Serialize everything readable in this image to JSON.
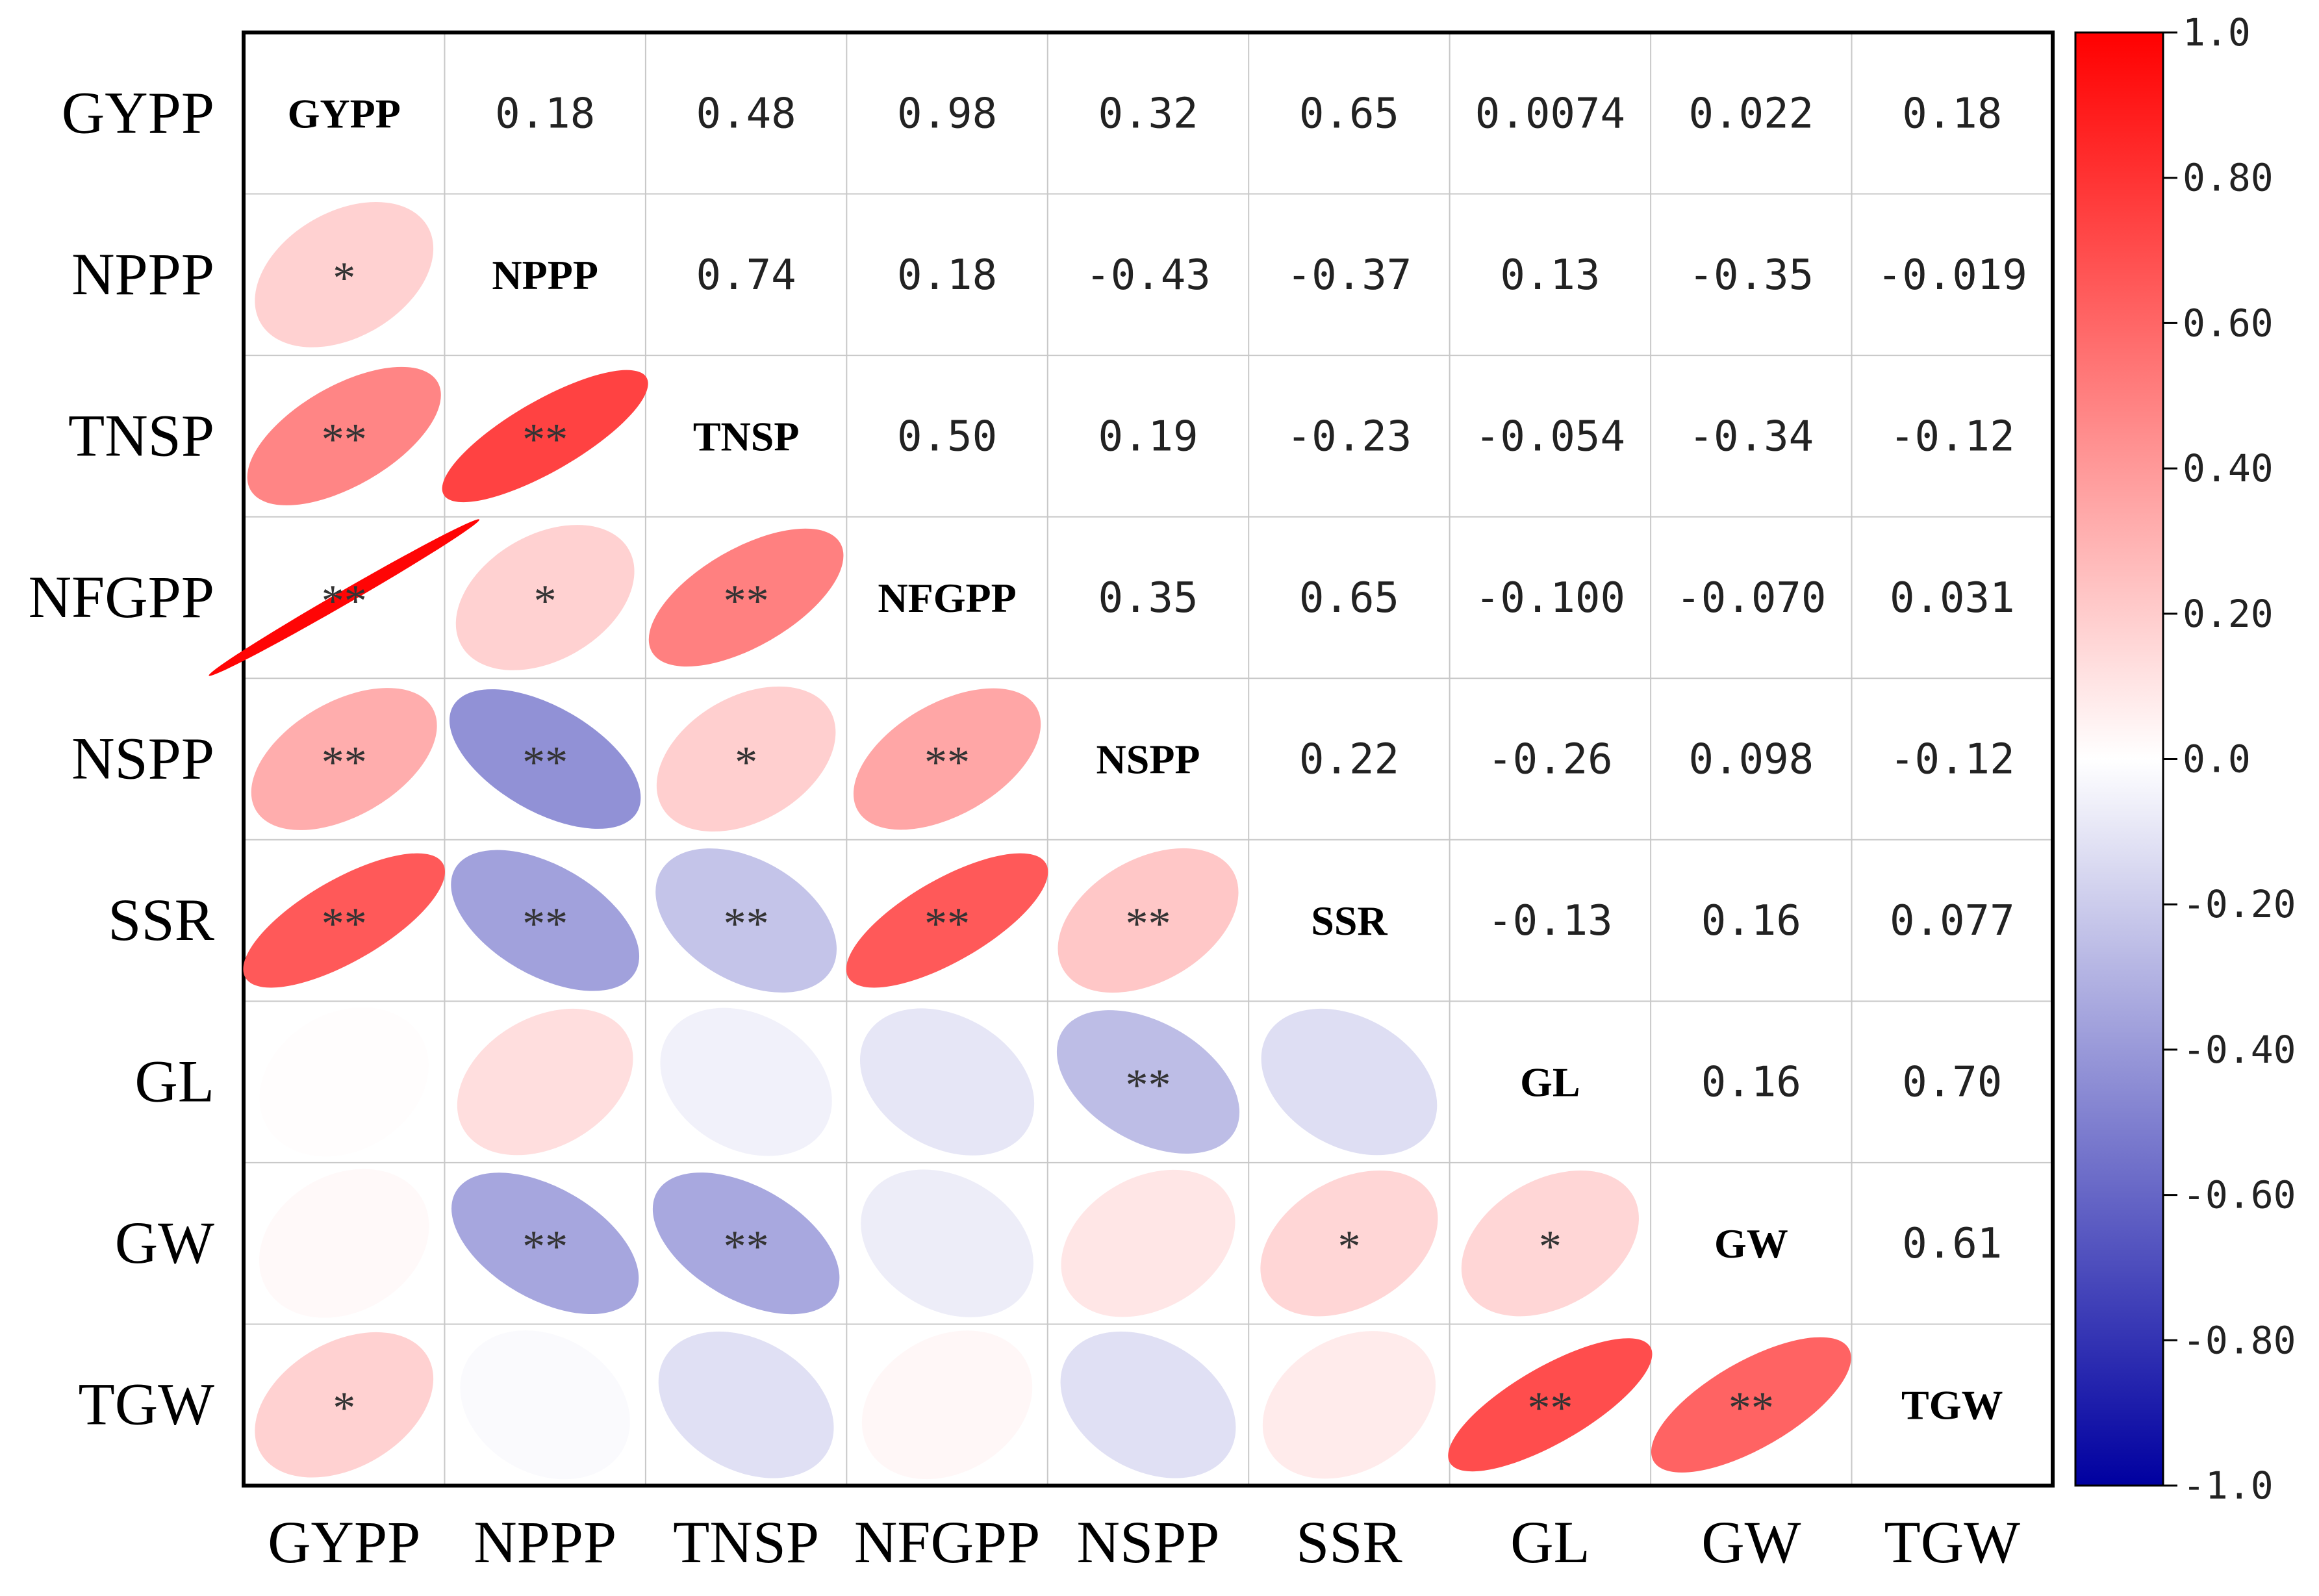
{
  "chart_data": {
    "type": "heatmap",
    "subtype": "correlation-matrix",
    "variables": [
      "GYPP",
      "NPPP",
      "TNSP",
      "NFGPP",
      "NSPP",
      "SSR",
      "GL",
      "GW",
      "TGW"
    ],
    "upper_labels": [
      [
        "GYPP",
        "0.18",
        "0.48",
        "0.98",
        "0.32",
        "0.65",
        "0.0074",
        "0.022",
        "0.18"
      ],
      [
        "",
        "NPPP",
        "0.74",
        "0.18",
        "-0.43",
        "-0.37",
        "0.13",
        "-0.35",
        "-0.019"
      ],
      [
        "",
        "",
        "TNSP",
        "0.50",
        "0.19",
        "-0.23",
        "-0.054",
        "-0.34",
        "-0.12"
      ],
      [
        "",
        "",
        "",
        "NFGPP",
        "0.35",
        "0.65",
        "-0.100",
        "-0.070",
        "0.031"
      ],
      [
        "",
        "",
        "",
        "",
        "NSPP",
        "0.22",
        "-0.26",
        "0.098",
        "-0.12"
      ],
      [
        "",
        "",
        "",
        "",
        "",
        "SSR",
        "-0.13",
        "0.16",
        "0.077"
      ],
      [
        "",
        "",
        "",
        "",
        "",
        "",
        "GL",
        "0.16",
        "0.70"
      ],
      [
        "",
        "",
        "",
        "",
        "",
        "",
        "",
        "GW",
        "0.61"
      ],
      [
        "",
        "",
        "",
        "",
        "",
        "",
        "",
        "",
        "TGW"
      ]
    ],
    "correlations": [
      [
        1.0,
        0.18,
        0.48,
        0.98,
        0.32,
        0.65,
        0.0074,
        0.022,
        0.18
      ],
      [
        0.18,
        1.0,
        0.74,
        0.18,
        -0.43,
        -0.37,
        0.13,
        -0.35,
        -0.019
      ],
      [
        0.48,
        0.74,
        1.0,
        0.5,
        0.19,
        -0.23,
        -0.054,
        -0.34,
        -0.12
      ],
      [
        0.98,
        0.18,
        0.5,
        1.0,
        0.35,
        0.65,
        -0.1,
        -0.07,
        0.031
      ],
      [
        0.32,
        -0.43,
        0.19,
        0.35,
        1.0,
        0.22,
        -0.26,
        0.098,
        -0.12
      ],
      [
        0.65,
        -0.37,
        -0.23,
        0.65,
        0.22,
        1.0,
        -0.13,
        0.16,
        0.077
      ],
      [
        0.0074,
        0.13,
        -0.054,
        -0.1,
        -0.26,
        -0.13,
        1.0,
        0.16,
        0.7
      ],
      [
        0.022,
        -0.35,
        -0.34,
        -0.07,
        0.098,
        0.16,
        0.16,
        1.0,
        0.61
      ],
      [
        0.18,
        -0.019,
        -0.12,
        0.031,
        -0.12,
        0.077,
        0.7,
        0.61,
        1.0
      ]
    ],
    "significance": [
      [
        "",
        "",
        "",
        "",
        "",
        "",
        "",
        "",
        ""
      ],
      [
        "*",
        "",
        "",
        "",
        "",
        "",
        "",
        "",
        ""
      ],
      [
        "**",
        "**",
        "",
        "",
        "",
        "",
        "",
        "",
        ""
      ],
      [
        "**",
        "*",
        "**",
        "",
        "",
        "",
        "",
        "",
        ""
      ],
      [
        "**",
        "**",
        "*",
        "**",
        "",
        "",
        "",
        "",
        ""
      ],
      [
        "**",
        "**",
        "**",
        "**",
        "**",
        "",
        "",
        "",
        ""
      ],
      [
        "",
        "",
        "",
        "",
        "**",
        "",
        "",
        "",
        ""
      ],
      [
        "",
        "**",
        "**",
        "",
        "",
        "*",
        "*",
        "",
        ""
      ],
      [
        "*",
        "",
        "",
        "",
        "",
        "",
        "**",
        "**",
        ""
      ]
    ],
    "colorbar": {
      "range": [
        -1.0,
        1.0
      ],
      "ticks": [
        "1.0",
        "0.80",
        "0.60",
        "0.40",
        "0.20",
        "0.0",
        "-0.20",
        "-0.40",
        "-0.60",
        "-0.80",
        "-1.0"
      ],
      "colors": {
        "negative": "#0000a0",
        "neutral": "#ffffff",
        "positive": "#ff0000"
      }
    },
    "grid": true,
    "legend": "right"
  }
}
